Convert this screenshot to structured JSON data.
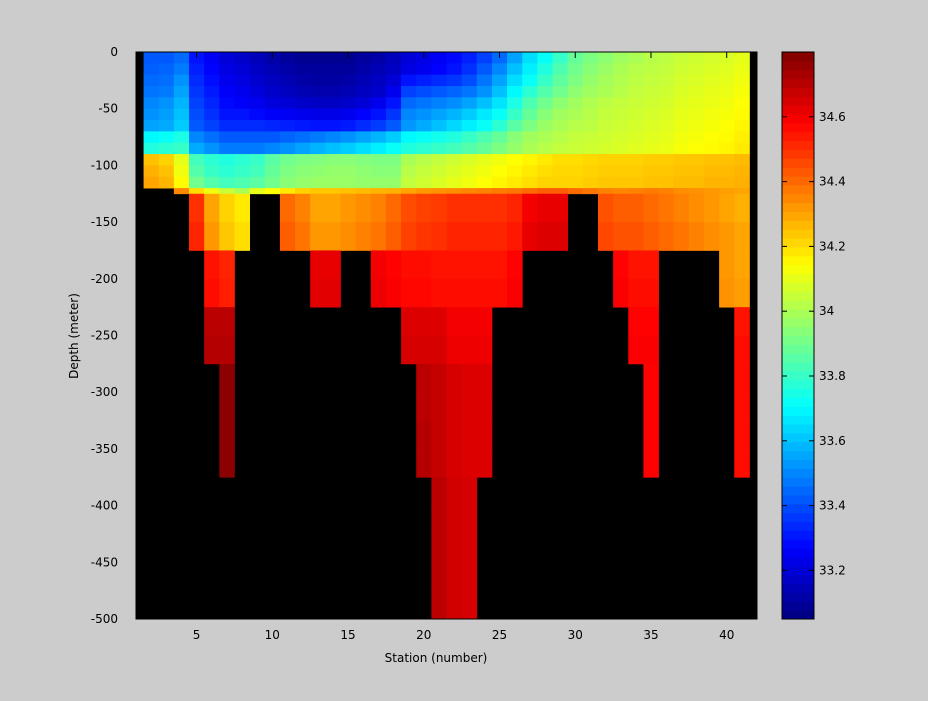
{
  "chart_data": {
    "type": "heatmap",
    "title": "",
    "xlabel": "Station (number)",
    "ylabel": "Depth (meter)",
    "x_range": [
      1,
      42
    ],
    "y_range": [
      -500,
      0
    ],
    "x_ticks": [
      5,
      10,
      15,
      20,
      25,
      30,
      35,
      40
    ],
    "y_ticks": [
      0,
      -50,
      -100,
      -150,
      -200,
      -250,
      -300,
      -350,
      -400,
      -450,
      -500
    ],
    "colorbar": {
      "range": [
        33.05,
        34.8
      ],
      "ticks": [
        33.2,
        33.4,
        33.6,
        33.8,
        34,
        34.2,
        34.4,
        34.6
      ],
      "tick_labels": [
        "33.2",
        "33.4",
        "33.6",
        "33.8",
        "34",
        "34.2",
        "34.4",
        "34.6"
      ],
      "colormap": "jet",
      "land_color": "#000000"
    },
    "stations": [
      2,
      3,
      4,
      5,
      6,
      7,
      8,
      9,
      10,
      11,
      12,
      13,
      14,
      15,
      16,
      17,
      18,
      19,
      20,
      21,
      22,
      23,
      24,
      25,
      26,
      27,
      28,
      29,
      30,
      31,
      32,
      33,
      34,
      35,
      36,
      37,
      38,
      39,
      40,
      41
    ],
    "depths": [
      -10,
      -20,
      -30,
      -40,
      -50,
      -60,
      -70,
      -80,
      -90,
      -100,
      -110,
      -120,
      -125,
      -150,
      -175,
      -200,
      -225,
      -250,
      -275,
      -300,
      -325,
      -350,
      -375,
      -400,
      -425,
      -450,
      -475,
      -500
    ],
    "max_depth_per_station": [
      -120,
      -120,
      -125,
      -200,
      -250,
      -300,
      -400,
      -200,
      -150,
      -150,
      -200,
      -250,
      -250,
      -200,
      -200,
      -250,
      -250,
      -300,
      -400,
      -450,
      -500,
      -500,
      -500,
      -400,
      -250,
      -200,
      -200,
      -200,
      -200,
      -150,
      -150,
      -200,
      -250,
      -400,
      -300,
      -200,
      -200,
      -200,
      -250,
      -400
    ],
    "salinity": [
      [
        33.42,
        33.42,
        33.45,
        33.3,
        33.25,
        33.2,
        33.18,
        33.15,
        33.12,
        33.1,
        33.08,
        33.08,
        33.08,
        33.08,
        33.1,
        33.12,
        33.15,
        33.2,
        33.22,
        33.25,
        33.28,
        33.32,
        33.38,
        33.45,
        33.55,
        33.65,
        33.72,
        33.8,
        33.88,
        33.92,
        33.95,
        33.98,
        34.0,
        34.02,
        34.03,
        34.05,
        34.06,
        34.07,
        34.08,
        34.1
      ],
      [
        33.43,
        33.44,
        33.48,
        33.32,
        33.27,
        33.22,
        33.2,
        33.17,
        33.14,
        33.12,
        33.1,
        33.1,
        33.1,
        33.1,
        33.12,
        33.14,
        33.17,
        33.22,
        33.24,
        33.27,
        33.3,
        33.35,
        33.42,
        33.5,
        33.6,
        33.68,
        33.76,
        33.84,
        33.9,
        33.94,
        33.97,
        34.0,
        34.02,
        34.03,
        34.04,
        34.06,
        34.07,
        34.08,
        34.09,
        34.11
      ],
      [
        33.45,
        33.46,
        33.52,
        33.34,
        33.29,
        33.24,
        33.22,
        33.19,
        33.16,
        33.14,
        33.12,
        33.11,
        33.11,
        33.12,
        33.14,
        33.16,
        33.2,
        33.3,
        33.32,
        33.34,
        33.36,
        33.4,
        33.47,
        33.55,
        33.65,
        33.72,
        33.8,
        33.87,
        33.92,
        33.96,
        33.99,
        34.01,
        34.03,
        34.04,
        34.05,
        34.07,
        34.08,
        34.09,
        34.1,
        34.12
      ],
      [
        33.47,
        33.48,
        33.55,
        33.36,
        33.31,
        33.26,
        33.24,
        33.21,
        33.18,
        33.16,
        33.14,
        33.13,
        33.13,
        33.14,
        33.16,
        33.18,
        33.24,
        33.38,
        33.4,
        33.42,
        33.44,
        33.47,
        33.52,
        33.6,
        33.7,
        33.78,
        33.85,
        33.9,
        33.95,
        33.98,
        34.0,
        34.02,
        34.04,
        34.05,
        34.06,
        34.08,
        34.09,
        34.1,
        34.11,
        34.13
      ],
      [
        33.5,
        33.52,
        33.58,
        33.38,
        33.33,
        33.28,
        33.26,
        33.24,
        33.21,
        33.2,
        33.18,
        33.17,
        33.17,
        33.18,
        33.2,
        33.24,
        33.3,
        33.45,
        33.47,
        33.49,
        33.51,
        33.55,
        33.6,
        33.66,
        33.75,
        33.84,
        33.9,
        33.95,
        33.98,
        34.01,
        34.03,
        34.04,
        34.05,
        34.06,
        34.07,
        34.09,
        34.1,
        34.11,
        34.12,
        34.14
      ],
      [
        33.52,
        33.54,
        33.6,
        33.4,
        33.35,
        33.3,
        33.3,
        33.28,
        33.26,
        33.25,
        33.24,
        33.23,
        33.23,
        33.24,
        33.27,
        33.3,
        33.36,
        33.5,
        33.52,
        33.55,
        33.58,
        33.62,
        33.67,
        33.72,
        33.8,
        33.88,
        33.94,
        33.98,
        34.0,
        34.02,
        34.04,
        34.05,
        34.06,
        34.07,
        34.08,
        34.1,
        34.11,
        34.12,
        34.13,
        34.15
      ],
      [
        33.55,
        33.56,
        33.62,
        33.42,
        33.38,
        33.34,
        33.34,
        33.34,
        33.33,
        33.32,
        33.31,
        33.3,
        33.3,
        33.31,
        33.34,
        33.37,
        33.42,
        33.53,
        33.56,
        33.6,
        33.64,
        33.68,
        33.72,
        33.78,
        33.86,
        33.92,
        33.97,
        34.0,
        34.02,
        34.03,
        34.05,
        34.06,
        34.07,
        34.08,
        34.09,
        34.11,
        34.12,
        34.13,
        34.14,
        34.16
      ],
      [
        33.7,
        33.72,
        33.75,
        33.5,
        33.46,
        33.42,
        33.42,
        33.42,
        33.42,
        33.44,
        33.46,
        33.48,
        33.5,
        33.52,
        33.55,
        33.58,
        33.62,
        33.7,
        33.72,
        33.74,
        33.76,
        33.8,
        33.84,
        33.88,
        33.94,
        33.98,
        34.0,
        34.02,
        34.04,
        34.05,
        34.06,
        34.07,
        34.08,
        34.09,
        34.1,
        34.12,
        34.13,
        34.14,
        34.15,
        34.17
      ],
      [
        33.76,
        33.78,
        33.8,
        33.56,
        33.52,
        33.48,
        33.48,
        33.48,
        33.5,
        33.52,
        33.55,
        33.58,
        33.6,
        33.62,
        33.65,
        33.68,
        33.72,
        33.76,
        33.78,
        33.8,
        33.82,
        33.85,
        33.88,
        33.92,
        33.96,
        34.0,
        34.02,
        34.04,
        34.05,
        34.06,
        34.07,
        34.08,
        34.09,
        34.1,
        34.11,
        34.13,
        34.14,
        34.15,
        34.16,
        34.18
      ],
      [
        34.25,
        34.22,
        34.1,
        33.82,
        33.78,
        33.76,
        33.78,
        33.8,
        33.86,
        33.9,
        33.92,
        33.93,
        33.94,
        33.94,
        33.93,
        33.92,
        33.92,
        34.0,
        34.02,
        34.04,
        34.06,
        34.08,
        34.1,
        34.12,
        34.14,
        34.16,
        34.18,
        34.2,
        34.2,
        34.21,
        34.22,
        34.22,
        34.22,
        34.23,
        34.23,
        34.24,
        34.24,
        34.25,
        34.25,
        34.26
      ],
      [
        34.28,
        34.25,
        34.12,
        33.85,
        33.8,
        33.78,
        33.8,
        33.82,
        33.88,
        33.92,
        33.94,
        33.95,
        33.96,
        33.96,
        33.95,
        33.94,
        33.94,
        34.02,
        34.04,
        34.06,
        34.08,
        34.1,
        34.12,
        34.14,
        34.16,
        34.18,
        34.2,
        34.21,
        34.21,
        34.22,
        34.23,
        34.23,
        34.23,
        34.24,
        34.24,
        34.25,
        34.25,
        34.26,
        34.26,
        34.27
      ],
      [
        34.3,
        34.27,
        34.15,
        33.9,
        33.85,
        33.82,
        33.84,
        33.86,
        33.9,
        33.94,
        33.96,
        33.97,
        33.97,
        33.97,
        33.96,
        33.96,
        33.96,
        34.04,
        34.06,
        34.08,
        34.1,
        34.12,
        34.14,
        34.16,
        34.18,
        34.2,
        34.22,
        34.22,
        34.22,
        34.23,
        34.24,
        34.24,
        34.24,
        34.25,
        34.25,
        34.26,
        34.26,
        34.27,
        34.27,
        34.28
      ],
      [
        null,
        null,
        34.35,
        34.2,
        34.12,
        34.05,
        34.0,
        34.1,
        34.14,
        34.18,
        34.22,
        34.24,
        34.24,
        34.25,
        34.26,
        34.27,
        34.28,
        34.3,
        34.32,
        34.33,
        34.34,
        34.35,
        34.36,
        34.37,
        34.38,
        34.4,
        34.42,
        34.42,
        34.4,
        34.38,
        34.36,
        34.35,
        34.36,
        34.37,
        34.36,
        34.34,
        34.33,
        34.32,
        34.31,
        34.3
      ],
      [
        null,
        null,
        null,
        34.5,
        34.3,
        34.22,
        34.18,
        null,
        null,
        34.4,
        34.36,
        34.3,
        34.3,
        34.32,
        34.34,
        34.36,
        34.4,
        34.45,
        34.47,
        34.48,
        34.5,
        34.5,
        34.5,
        34.5,
        34.52,
        34.6,
        34.62,
        34.62,
        null,
        null,
        34.44,
        34.42,
        34.42,
        34.4,
        34.38,
        34.36,
        34.34,
        34.32,
        34.3,
        34.28
      ],
      [
        null,
        null,
        null,
        34.52,
        34.32,
        34.24,
        34.2,
        null,
        null,
        34.42,
        34.38,
        34.32,
        34.32,
        34.34,
        34.36,
        34.38,
        34.42,
        34.47,
        34.49,
        34.5,
        34.52,
        34.52,
        34.52,
        34.52,
        34.54,
        34.62,
        34.64,
        34.64,
        null,
        null,
        34.46,
        34.44,
        34.44,
        34.42,
        34.4,
        34.38,
        34.36,
        34.34,
        34.32,
        34.3
      ],
      [
        null,
        null,
        null,
        null,
        34.55,
        34.52,
        null,
        null,
        null,
        null,
        null,
        34.62,
        34.62,
        null,
        null,
        34.6,
        34.58,
        34.56,
        34.56,
        34.55,
        34.55,
        34.55,
        34.55,
        34.55,
        34.58,
        null,
        null,
        null,
        null,
        null,
        null,
        34.58,
        34.55,
        34.55,
        null,
        null,
        null,
        null,
        34.32,
        34.3
      ],
      [
        null,
        null,
        null,
        null,
        34.56,
        34.53,
        null,
        null,
        null,
        null,
        null,
        34.63,
        34.63,
        null,
        null,
        34.61,
        34.59,
        34.57,
        34.57,
        34.56,
        34.56,
        34.56,
        34.56,
        34.56,
        34.59,
        null,
        null,
        null,
        null,
        null,
        null,
        34.59,
        34.56,
        34.56,
        null,
        null,
        null,
        null,
        34.33,
        34.31
      ],
      [
        null,
        null,
        null,
        null,
        34.7,
        34.7,
        null,
        null,
        null,
        null,
        null,
        null,
        null,
        null,
        null,
        null,
        null,
        34.64,
        34.64,
        34.64,
        34.6,
        34.6,
        34.6,
        null,
        null,
        null,
        null,
        null,
        null,
        null,
        null,
        null,
        34.58,
        34.58,
        null,
        null,
        null,
        null,
        null,
        34.55
      ],
      [
        null,
        null,
        null,
        null,
        34.71,
        34.71,
        null,
        null,
        null,
        null,
        null,
        null,
        null,
        null,
        null,
        null,
        null,
        34.65,
        34.65,
        34.65,
        34.61,
        34.61,
        34.61,
        null,
        null,
        null,
        null,
        null,
        null,
        null,
        null,
        null,
        34.59,
        34.59,
        null,
        null,
        null,
        null,
        null,
        34.56
      ],
      [
        null,
        null,
        null,
        null,
        null,
        34.78,
        null,
        null,
        null,
        null,
        null,
        null,
        null,
        null,
        null,
        null,
        null,
        null,
        34.7,
        34.68,
        34.65,
        34.64,
        34.64,
        null,
        null,
        null,
        null,
        null,
        null,
        null,
        null,
        null,
        null,
        34.58,
        null,
        null,
        null,
        null,
        null,
        34.56
      ],
      [
        null,
        null,
        null,
        null,
        null,
        34.78,
        null,
        null,
        null,
        null,
        null,
        null,
        null,
        null,
        null,
        null,
        null,
        null,
        34.7,
        34.68,
        34.65,
        34.64,
        34.64,
        null,
        null,
        null,
        null,
        null,
        null,
        null,
        null,
        null,
        null,
        34.58,
        null,
        null,
        null,
        null,
        null,
        34.56
      ],
      [
        null,
        null,
        null,
        null,
        null,
        34.78,
        null,
        null,
        null,
        null,
        null,
        null,
        null,
        null,
        null,
        null,
        null,
        null,
        34.71,
        34.68,
        34.65,
        34.64,
        34.64,
        null,
        null,
        null,
        null,
        null,
        null,
        null,
        null,
        null,
        null,
        34.58,
        null,
        null,
        null,
        null,
        null,
        34.56
      ],
      [
        null,
        null,
        null,
        null,
        null,
        34.78,
        null,
        null,
        null,
        null,
        null,
        null,
        null,
        null,
        null,
        null,
        null,
        null,
        34.71,
        34.68,
        34.65,
        34.64,
        34.64,
        null,
        null,
        null,
        null,
        null,
        null,
        null,
        null,
        null,
        null,
        34.58,
        null,
        null,
        null,
        null,
        null,
        34.56
      ],
      [
        null,
        null,
        null,
        null,
        null,
        null,
        null,
        null,
        null,
        null,
        null,
        null,
        null,
        null,
        null,
        null,
        null,
        null,
        null,
        34.7,
        34.66,
        34.65,
        null,
        null,
        null,
        null,
        null,
        null,
        null,
        null,
        null,
        null,
        null,
        null,
        null,
        null,
        null,
        null,
        null,
        null
      ],
      [
        null,
        null,
        null,
        null,
        null,
        null,
        null,
        null,
        null,
        null,
        null,
        null,
        null,
        null,
        null,
        null,
        null,
        null,
        null,
        34.7,
        34.66,
        34.65,
        null,
        null,
        null,
        null,
        null,
        null,
        null,
        null,
        null,
        null,
        null,
        null,
        null,
        null,
        null,
        null,
        null,
        null
      ],
      [
        null,
        null,
        null,
        null,
        null,
        null,
        null,
        null,
        null,
        null,
        null,
        null,
        null,
        null,
        null,
        null,
        null,
        null,
        null,
        34.7,
        34.66,
        34.65,
        null,
        null,
        null,
        null,
        null,
        null,
        null,
        null,
        null,
        null,
        null,
        null,
        null,
        null,
        null,
        null,
        null,
        null
      ],
      [
        null,
        null,
        null,
        null,
        null,
        null,
        null,
        null,
        null,
        null,
        null,
        null,
        null,
        null,
        null,
        null,
        null,
        null,
        null,
        34.7,
        34.66,
        34.65,
        null,
        null,
        null,
        null,
        null,
        null,
        null,
        null,
        null,
        null,
        null,
        null,
        null,
        null,
        null,
        null,
        null,
        null
      ],
      [
        null,
        null,
        null,
        null,
        null,
        null,
        null,
        null,
        null,
        null,
        null,
        null,
        null,
        null,
        null,
        null,
        null,
        null,
        null,
        34.7,
        34.66,
        34.65,
        null,
        null,
        null,
        null,
        null,
        null,
        null,
        null,
        null,
        null,
        null,
        null,
        null,
        null,
        null,
        null,
        null,
        null
      ]
    ]
  }
}
